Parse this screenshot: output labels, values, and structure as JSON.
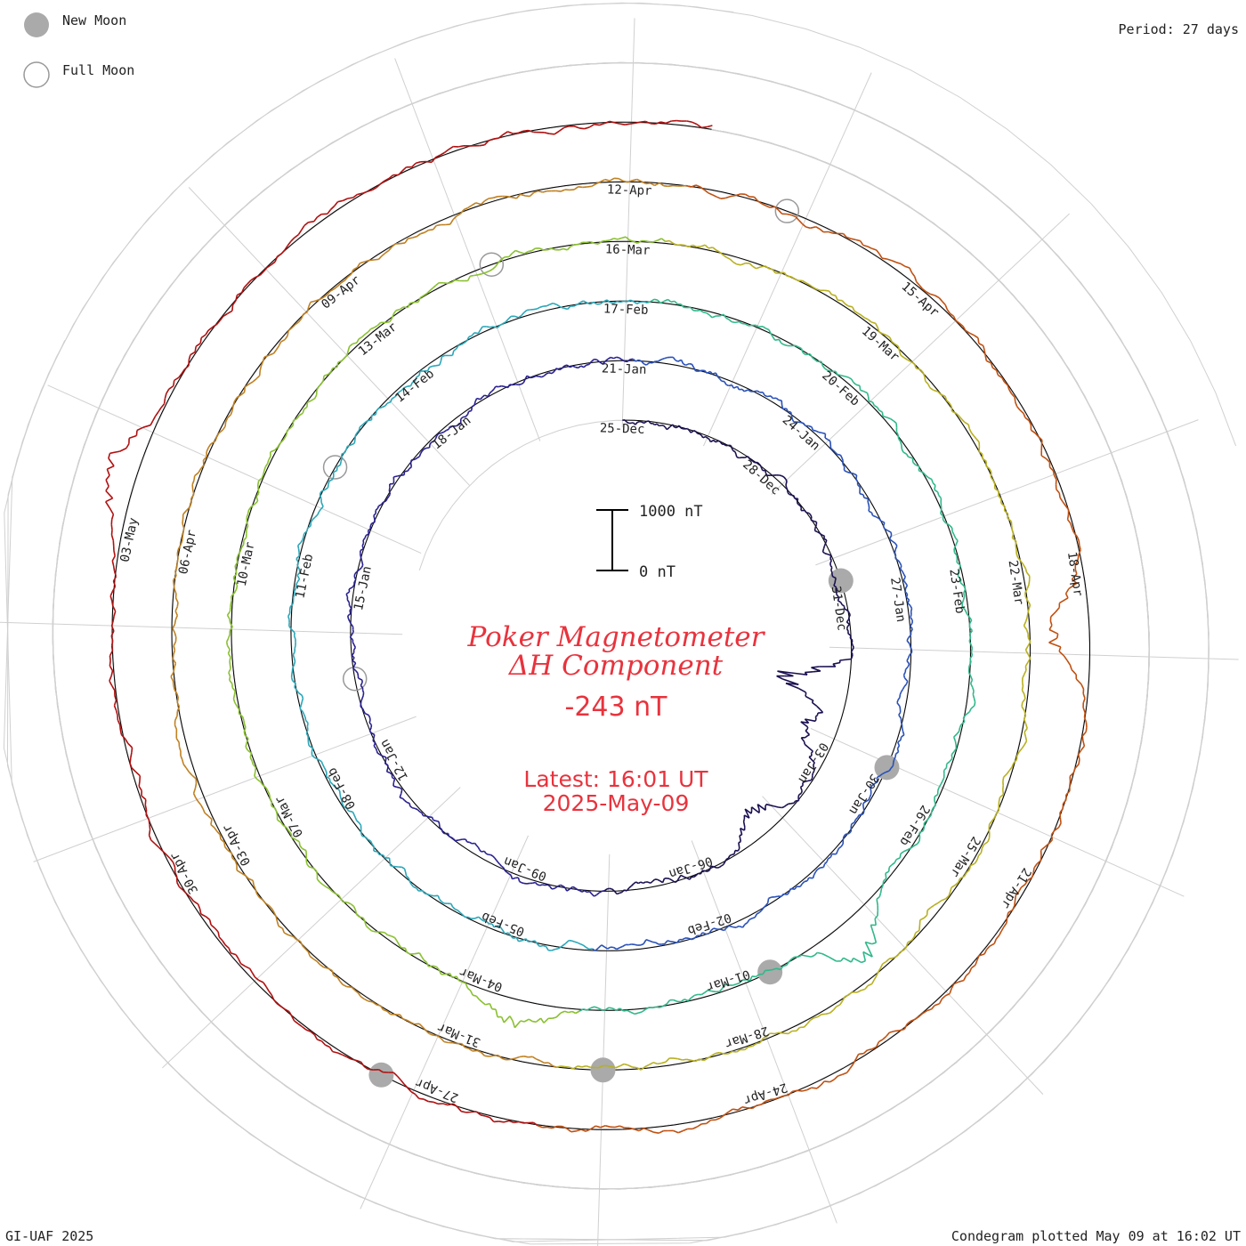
{
  "legend": {
    "new_moon_label": "New Moon",
    "full_moon_label": "Full Moon",
    "new_moon_color": "#aaaaaa",
    "full_moon_color": "#999999"
  },
  "period_label": "Period: 27 days",
  "footer": {
    "left": "GI-UAF 2025",
    "right": "Condegram plotted May 09 at 16:02 UT"
  },
  "center": {
    "title_line1": "Poker Magnetometer",
    "title_line2": "ΔH Component",
    "current_value": "-243 nT",
    "latest_line1": "Latest: 16:01 UT",
    "latest_line2": "2025-May-09"
  },
  "scale_bar": {
    "top_label": "1000 nT",
    "bottom_label": "0 nT"
  },
  "chart_data": {
    "type": "line",
    "subtype": "condegram spiral (polar time series)",
    "title": "Poker Magnetometer ΔH Component",
    "period_days": 27,
    "units": "nT",
    "scale_bar_nT": [
      0,
      1000
    ],
    "latest_value_nT": -243,
    "latest_time": "2025-May-09 16:01 UT",
    "start_date": "2024-12-25",
    "end_date": "2025-05-09",
    "date_labels": [
      "25-Dec",
      "28-Dec",
      "31-Dec",
      "03-Jan",
      "06-Jan",
      "09-Jan",
      "12-Jan",
      "15-Jan",
      "18-Jan",
      "21-Jan",
      "24-Jan",
      "27-Jan",
      "30-Jan",
      "02-Feb",
      "05-Feb",
      "08-Feb",
      "11-Feb",
      "14-Feb",
      "17-Feb",
      "20-Feb",
      "23-Feb",
      "26-Feb",
      "01-Mar",
      "04-Mar",
      "07-Mar",
      "10-Mar",
      "13-Mar",
      "16-Mar",
      "19-Mar",
      "22-Mar",
      "25-Mar",
      "28-Mar",
      "31-Mar",
      "03-Apr",
      "06-Apr",
      "09-Apr",
      "12-Apr",
      "15-Apr",
      "18-Apr",
      "21-Apr",
      "24-Apr",
      "27-Apr",
      "30-Apr",
      "03-May"
    ],
    "new_moon_dates": [
      "2024-12-30",
      "2025-01-29",
      "2025-02-28",
      "2025-03-29",
      "2025-04-27"
    ],
    "full_moon_dates": [
      "2025-01-13",
      "2025-02-12",
      "2025-03-14",
      "2025-04-13"
    ],
    "grid": true,
    "series_colors": [
      "#1a1050",
      "#28208f",
      "#2850b8",
      "#2aa6b8",
      "#30b88a",
      "#8ac030",
      "#b8b020",
      "#c08020",
      "#c05010",
      "#b01010"
    ],
    "disturbance_events": [
      {
        "date": "2025-01-01",
        "amplitude_nT": -1250
      },
      {
        "date": "2025-01-02",
        "amplitude_nT": -700
      },
      {
        "date": "2025-01-04",
        "amplitude_nT": -600
      },
      {
        "date": "2025-02-27",
        "amplitude_nT": 700
      },
      {
        "date": "2025-03-03",
        "amplitude_nT": 500
      },
      {
        "date": "2025-04-18",
        "amplitude_nT": -700
      },
      {
        "date": "2025-05-03",
        "amplitude_nT": 550
      }
    ]
  }
}
